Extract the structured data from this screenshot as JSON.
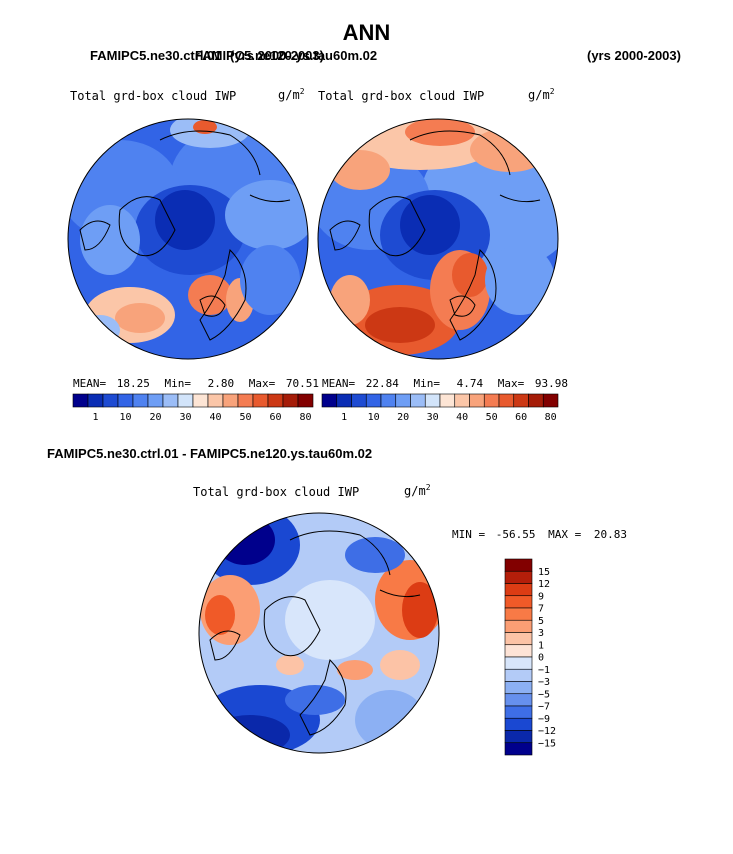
{
  "title": "ANN",
  "headers": {
    "left_case": "FAMIPC5.ne30.ctrl.01",
    "left_years": "(yrs 2000-2003)",
    "right_case": "FAMIPC5.ne120.ys.tau60m.02",
    "right_years": "(yrs 2000-2003)",
    "diff_case": "FAMIPC5.ne30.ctrl.01 - FAMIPC5.ne120.ys.tau60m.02"
  },
  "chart_data": [
    {
      "type": "heatmap",
      "projection": "polar stereographic (north)",
      "title": "Total grd-box cloud IWP",
      "units": "g/m2",
      "stats": {
        "mean_label": "MEAN=",
        "mean": "18.25",
        "min_label": "Min=",
        "min": "2.80",
        "max_label": "Max=",
        "max": "70.51"
      },
      "colorbar_ticks": [
        "1",
        "10",
        "20",
        "30",
        "40",
        "50",
        "60",
        "80"
      ]
    },
    {
      "type": "heatmap",
      "projection": "polar stereographic (north)",
      "title": "Total grd-box cloud IWP",
      "units": "g/m2",
      "stats": {
        "mean_label": "MEAN=",
        "mean": "22.84",
        "min_label": "Min=",
        "min": "4.74",
        "max_label": "Max=",
        "max": "93.98"
      },
      "colorbar_ticks": [
        "1",
        "10",
        "20",
        "30",
        "40",
        "50",
        "60",
        "80"
      ]
    },
    {
      "type": "heatmap",
      "projection": "polar stereographic (north)",
      "title": "Total grd-box cloud IWP",
      "units": "g/m2",
      "stats": {
        "min_label": "MIN =",
        "min": "-56.55",
        "max_label": "MAX =",
        "max": "20.83"
      },
      "colorbar_ticks": [
        "15",
        "12",
        "9",
        "7",
        "5",
        "3",
        "1",
        "0",
        "−1",
        "−3",
        "−5",
        "−7",
        "−9",
        "−12",
        "−15"
      ]
    }
  ],
  "colors": {
    "abs_scale": [
      "#00008c",
      "#0a2db4",
      "#1e4bd2",
      "#3264e6",
      "#4f82f0",
      "#6e9ef5",
      "#9bbdf7",
      "#d2e4fa",
      "#fde5d5",
      "#fbc6a8",
      "#f8a37b",
      "#f47c52",
      "#e85a2e",
      "#cc3814",
      "#a51c08",
      "#820000"
    ],
    "diff_scale": [
      "#820000",
      "#b41e0a",
      "#dc3c14",
      "#f05a28",
      "#f87a46",
      "#fb9e74",
      "#fcc3a6",
      "#fde3d6",
      "#d8e6fb",
      "#b3cbf7",
      "#8cb0f3",
      "#6690ed",
      "#3e6ee6",
      "#1a48d2",
      "#0a28aa",
      "#00008c"
    ]
  }
}
